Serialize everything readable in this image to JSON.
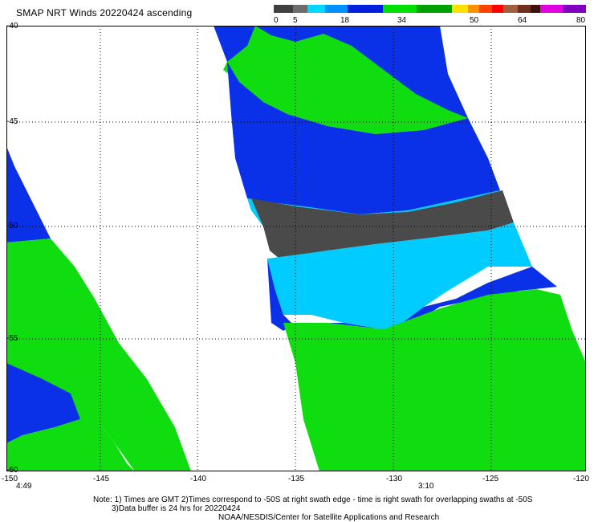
{
  "title": "SMAP NRT Winds 20220424 ascending",
  "colorbar": {
    "labels": [
      "0",
      "5",
      "18",
      "34",
      "50",
      "64",
      "80"
    ],
    "segments": [
      "#404040",
      "#707070",
      "#00c8ff",
      "#0050ff",
      "#0000c8",
      "#00c800",
      "#00a000",
      "#ffd200",
      "#ff8000",
      "#ff0000",
      "#b01010",
      "#8b5a3c",
      "#5a3020",
      "#e000e0",
      "#a000c0",
      "#600090"
    ]
  },
  "axes": {
    "x_ticks": [
      "-150",
      "-145",
      "-140",
      "-135",
      "-130",
      "-125",
      "-120"
    ],
    "y_ticks": [
      "-40",
      "-45",
      "-50",
      "-55",
      "-60"
    ]
  },
  "times": [
    "4:49",
    "3:10"
  ],
  "notes": {
    "line1": "Note: 1) Times are GMT 2)Times correspond to -50S at right swath edge - time is right swath for overlapping swaths at -50S",
    "line2": "3)Data buffer is 24 hrs for 20220424",
    "line3": "NOAA/NESDIS/Center for Satellite Applications and Research"
  }
}
